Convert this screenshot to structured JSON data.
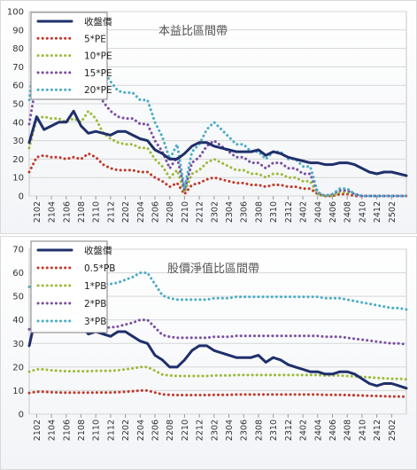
{
  "chart_data": [
    {
      "type": "line",
      "title": "本益比區間帶",
      "xlabel": "",
      "ylabel": "",
      "ylim": [
        0,
        100
      ],
      "yticks": [
        0,
        10,
        20,
        30,
        40,
        50,
        60,
        70,
        80,
        90,
        100
      ],
      "xticks": [
        "2102",
        "2104",
        "2106",
        "2108",
        "2110",
        "2112",
        "2202",
        "2204",
        "2206",
        "2208",
        "2210",
        "2212",
        "2302",
        "2304",
        "2306",
        "2308",
        "2310",
        "2312",
        "2402",
        "2404",
        "2406",
        "2408",
        "2410",
        "2412",
        "2502"
      ],
      "grid": true,
      "legend_position": "top-left",
      "x": [
        "2101",
        "2102",
        "2103",
        "2104",
        "2105",
        "2106",
        "2107",
        "2108",
        "2109",
        "2110",
        "2111",
        "2112",
        "2201",
        "2202",
        "2203",
        "2204",
        "2205",
        "2206",
        "2207",
        "2208",
        "2209",
        "2210",
        "2211",
        "2212",
        "2301",
        "2302",
        "2303",
        "2304",
        "2305",
        "2306",
        "2307",
        "2308",
        "2309",
        "2310",
        "2311",
        "2312",
        "2401",
        "2402",
        "2403",
        "2404",
        "2405",
        "2406",
        "2407",
        "2408",
        "2409",
        "2410",
        "2411",
        "2412",
        "2501",
        "2502",
        "2503",
        "2504"
      ],
      "series": [
        {
          "name": "收盤價",
          "color": "#1f2f6b",
          "style": "solid",
          "values": [
            29,
            43,
            36,
            38,
            40,
            40,
            46,
            38,
            34,
            35,
            34,
            33,
            35,
            35,
            33,
            31,
            30,
            25,
            23,
            20,
            20,
            23,
            27,
            29,
            29,
            27,
            26,
            25,
            24,
            24,
            24,
            25,
            22,
            24,
            23,
            21,
            20,
            19,
            18,
            18,
            17,
            17,
            18,
            18,
            17,
            15,
            13,
            12,
            13,
            13,
            12,
            11
          ]
        },
        {
          "name": "5*PE",
          "color": "#c0392b",
          "style": "dotted",
          "values": [
            13,
            21,
            22,
            21,
            21,
            20,
            21,
            20,
            23,
            21,
            17,
            15,
            14,
            14,
            14,
            13,
            13,
            10,
            8,
            5,
            7,
            1,
            6,
            7,
            9,
            10,
            9,
            8,
            7,
            7,
            6,
            6,
            5,
            6,
            6,
            5,
            5,
            4,
            4,
            1,
            0,
            0,
            1,
            1,
            0,
            0,
            0,
            0,
            0,
            0,
            0,
            0
          ]
        },
        {
          "name": "10*PE",
          "color": "#9bbb3b",
          "style": "dotted",
          "values": [
            26,
            42,
            43,
            42,
            42,
            40,
            42,
            40,
            46,
            42,
            34,
            31,
            29,
            28,
            28,
            26,
            26,
            20,
            16,
            10,
            14,
            2,
            12,
            14,
            18,
            20,
            18,
            16,
            14,
            14,
            12,
            12,
            10,
            12,
            12,
            10,
            10,
            8,
            8,
            1,
            0,
            0,
            2,
            2,
            1,
            0,
            0,
            0,
            0,
            0,
            0,
            0
          ]
        },
        {
          "name": "15*PE",
          "color": "#7a4fa0",
          "style": "dotted",
          "values": [
            39,
            63,
            64,
            63,
            63,
            60,
            63,
            60,
            69,
            63,
            51,
            46,
            43,
            42,
            42,
            39,
            39,
            30,
            24,
            15,
            21,
            3,
            18,
            21,
            27,
            30,
            27,
            24,
            21,
            21,
            18,
            18,
            15,
            18,
            18,
            15,
            15,
            12,
            12,
            2,
            0,
            1,
            3,
            3,
            1,
            0,
            0,
            0,
            0,
            0,
            0,
            0
          ]
        },
        {
          "name": "20*PE",
          "color": "#4bacc6",
          "style": "dotted",
          "values": [
            52,
            84,
            86,
            84,
            84,
            80,
            84,
            80,
            92,
            84,
            68,
            62,
            57,
            56,
            56,
            52,
            52,
            40,
            32,
            20,
            28,
            4,
            24,
            28,
            36,
            40,
            36,
            32,
            28,
            28,
            24,
            24,
            20,
            24,
            24,
            20,
            20,
            16,
            16,
            2,
            0,
            1,
            4,
            4,
            1,
            0,
            0,
            0,
            0,
            0,
            0,
            0
          ]
        }
      ]
    },
    {
      "type": "line",
      "title": "股價淨值比區間帶",
      "xlabel": "",
      "ylabel": "",
      "ylim": [
        0,
        70
      ],
      "yticks": [
        0,
        10,
        20,
        30,
        40,
        50,
        60,
        70
      ],
      "xticks": [
        "2102",
        "2104",
        "2106",
        "2108",
        "2110",
        "2112",
        "2202",
        "2204",
        "2206",
        "2208",
        "2210",
        "2212",
        "2302",
        "2304",
        "2306",
        "2308",
        "2310",
        "2312",
        "2402",
        "2404",
        "2406",
        "2408",
        "2410",
        "2412",
        "2502"
      ],
      "grid": true,
      "legend_position": "top-left",
      "x": [
        "2101",
        "2102",
        "2103",
        "2104",
        "2105",
        "2106",
        "2107",
        "2108",
        "2109",
        "2110",
        "2111",
        "2112",
        "2201",
        "2202",
        "2203",
        "2204",
        "2205",
        "2206",
        "2207",
        "2208",
        "2209",
        "2210",
        "2211",
        "2212",
        "2301",
        "2302",
        "2303",
        "2304",
        "2305",
        "2306",
        "2307",
        "2308",
        "2309",
        "2310",
        "2311",
        "2312",
        "2401",
        "2402",
        "2403",
        "2404",
        "2405",
        "2406",
        "2407",
        "2408",
        "2409",
        "2410",
        "2411",
        "2412",
        "2501",
        "2502",
        "2503",
        "2504"
      ],
      "series": [
        {
          "name": "收盤價",
          "color": "#1f2f6b",
          "style": "solid",
          "values": [
            29,
            43,
            36,
            38,
            40,
            40,
            46,
            38,
            34,
            35,
            34,
            33,
            35,
            35,
            33,
            31,
            30,
            25,
            23,
            20,
            20,
            23,
            27,
            29,
            29,
            27,
            26,
            25,
            24,
            24,
            24,
            25,
            22,
            24,
            23,
            21,
            20,
            19,
            18,
            18,
            17,
            17,
            18,
            18,
            17,
            15,
            13,
            12,
            13,
            13,
            12,
            11
          ]
        },
        {
          "name": "0.5*PB",
          "color": "#c0392b",
          "style": "dotted",
          "values": [
            9,
            9.5,
            9.5,
            9.3,
            9.2,
            9.1,
            9.1,
            9.1,
            9.1,
            9.2,
            9.2,
            9.2,
            9.3,
            9.5,
            9.7,
            10,
            10,
            9.2,
            8.4,
            8.2,
            8.1,
            8.1,
            8.1,
            8.1,
            8.1,
            8.2,
            8.2,
            8.2,
            8.3,
            8.3,
            8.3,
            8.3,
            8.3,
            8.3,
            8.3,
            8.3,
            8.3,
            8.3,
            8.3,
            8.3,
            8.2,
            8.2,
            8.2,
            8.1,
            8,
            7.9,
            7.8,
            7.7,
            7.6,
            7.5,
            7.5,
            7.4
          ]
        },
        {
          "name": "1*PB",
          "color": "#9bbb3b",
          "style": "dotted",
          "values": [
            18,
            19,
            19,
            18.6,
            18.4,
            18.2,
            18.2,
            18.2,
            18.2,
            18.4,
            18.4,
            18.4,
            18.6,
            19,
            19.4,
            20,
            20,
            18.4,
            16.8,
            16.4,
            16.2,
            16.2,
            16.2,
            16.2,
            16.2,
            16.4,
            16.4,
            16.4,
            16.6,
            16.6,
            16.6,
            16.6,
            16.6,
            16.6,
            16.6,
            16.6,
            16.6,
            16.6,
            16.6,
            16.6,
            16.4,
            16.4,
            16.4,
            16.2,
            16,
            15.8,
            15.6,
            15.4,
            15.2,
            15,
            15,
            14.8
          ]
        },
        {
          "name": "2*PB",
          "color": "#7a4fa0",
          "style": "dotted",
          "values": [
            36,
            38,
            38,
            37.2,
            36.8,
            36.4,
            36.4,
            36.4,
            36.4,
            36.8,
            36.8,
            36.8,
            37.2,
            38,
            38.8,
            40,
            40,
            36.8,
            33.6,
            32.8,
            32.4,
            32.4,
            32.4,
            32.4,
            32.4,
            32.8,
            32.8,
            32.8,
            33.2,
            33.2,
            33.2,
            33.2,
            33.2,
            33.2,
            33.2,
            33.2,
            33.2,
            33.2,
            33.2,
            33.2,
            32.8,
            32.8,
            32.8,
            32.4,
            32,
            31.6,
            31.2,
            30.8,
            30.4,
            30,
            30,
            29.6
          ]
        },
        {
          "name": "3*PB",
          "color": "#4bacc6",
          "style": "dotted",
          "values": [
            54,
            57,
            57,
            55.8,
            55.2,
            54.6,
            54.6,
            54.6,
            54.6,
            55.2,
            55.2,
            55.2,
            55.8,
            57,
            58.2,
            60,
            60,
            55.2,
            50.4,
            49.2,
            48.6,
            48.6,
            48.6,
            48.6,
            48.6,
            49.2,
            49.2,
            49.2,
            49.8,
            49.8,
            49.8,
            49.8,
            49.8,
            49.8,
            49.8,
            49.8,
            49.8,
            49.8,
            49.8,
            49.8,
            49.2,
            49.2,
            49.2,
            48.6,
            48,
            47.4,
            46.8,
            46.2,
            45.6,
            45,
            45,
            44.4
          ]
        }
      ]
    }
  ]
}
